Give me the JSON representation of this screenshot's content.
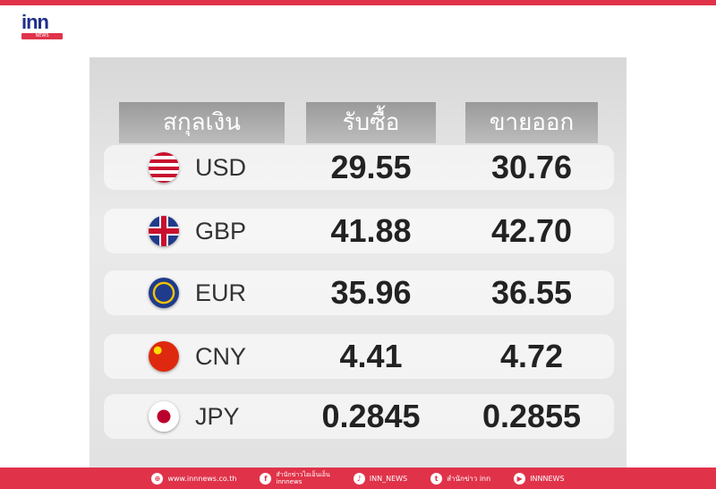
{
  "logo": {
    "text": "inn",
    "badge": "NEWS"
  },
  "table": {
    "headers": [
      "สกุลเงิน",
      "รับซื้อ",
      "ขายออก"
    ],
    "rows": [
      {
        "currency": "USD",
        "flag": "us-flag",
        "buy": "29.55",
        "sell": "30.76"
      },
      {
        "currency": "GBP",
        "flag": "uk-flag",
        "buy": "41.88",
        "sell": "42.70"
      },
      {
        "currency": "EUR",
        "flag": "eu-flag",
        "buy": "35.96",
        "sell": "36.55"
      },
      {
        "currency": "CNY",
        "flag": "cn-flag",
        "buy": "4.41",
        "sell": "4.72"
      },
      {
        "currency": "JPY",
        "flag": "jp-flag",
        "buy": "0.2845",
        "sell": "0.2855"
      }
    ]
  },
  "footer": {
    "website": "www.innnews.co.th",
    "facebook_line1": "สำนักข่าวไอเอ็นเอ็น",
    "facebook_line2": "innnews",
    "tiktok": "INN_NEWS",
    "twitter": "สำนักข่าว inn",
    "youtube": "INNNEWS"
  },
  "colors": {
    "brand_red": "#e0334a",
    "brand_blue": "#1f2f8a"
  }
}
